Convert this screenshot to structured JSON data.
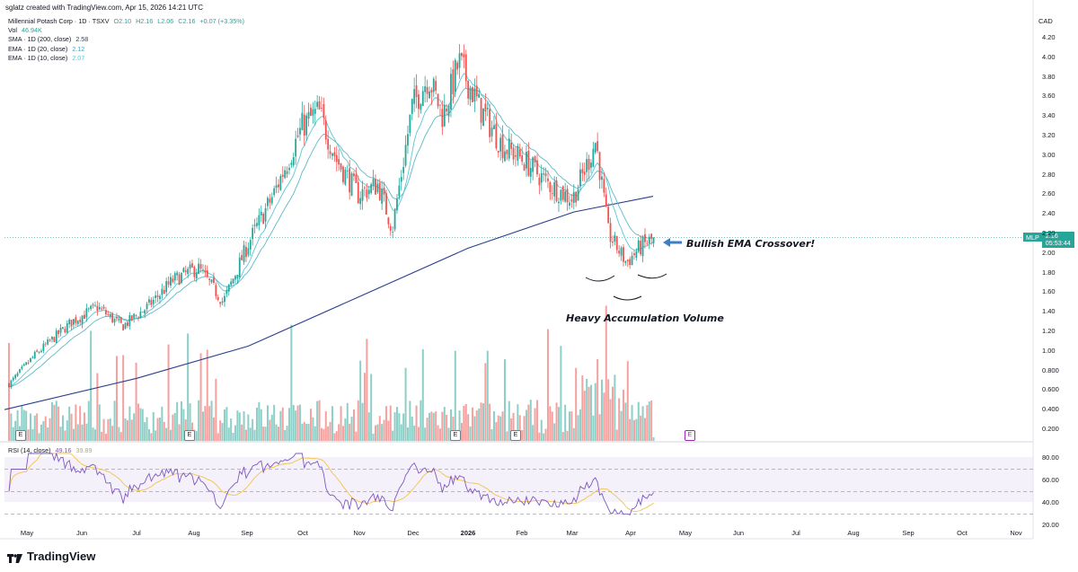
{
  "credit": "sglatz created with TradingView.com, Apr 15, 2026 14:21 UTC",
  "legend": {
    "title": "Millennial Potash Corp · 1D · TSXV",
    "ohlc": {
      "o": "O2.10",
      "h": "H2.16",
      "l": "L2.06",
      "c": "C2.16",
      "chg": "+0.07 (+3.35%)"
    },
    "vol_label": "Vol",
    "vol_value": "46.94K",
    "sma_label": "SMA · 1D (200, close)",
    "sma_value": "2.58",
    "ema20_label": "EMA · 1D (20, close)",
    "ema20_value": "2.12",
    "ema10_label": "EMA · 1D (10, close)",
    "ema10_value": "2.07"
  },
  "rsi_legend": {
    "label": "RSI (14, close)",
    "rsi_value": "49.16",
    "ma_value": "39.89"
  },
  "currency": "CAD",
  "price_tag": {
    "symbol": "MLP",
    "price": "2.16",
    "countdown": "05:53:44"
  },
  "annotations": {
    "bullish": "Bullish EMA Crossover!",
    "volume": "Heavy Accumulation Volume"
  },
  "event_marker": "E",
  "logo": "TradingView",
  "colors": {
    "up": "#26a69a",
    "down": "#ef5350",
    "vol_up": "#8dcfc7",
    "vol_down": "#f5a19f",
    "sma": "#2a3f8f",
    "ema20": "#5fb8c6",
    "ema10": "#56c8d8",
    "rsi": "#7e57c2",
    "rsi_ma": "#f5c24a",
    "annot_arrow": "#3d7fc4"
  },
  "chart_data": {
    "type": "candlestick",
    "price_axis": {
      "ticks": [
        "4.20",
        "4.00",
        "3.80",
        "3.60",
        "3.40",
        "3.20",
        "3.00",
        "2.80",
        "2.60",
        "2.40",
        "2.20",
        "2.00",
        "1.80",
        "1.60",
        "1.40",
        "1.20",
        "1.00",
        "0.800",
        "0.600",
        "0.400",
        "0.200"
      ],
      "ylim": [
        0.1,
        4.3
      ]
    },
    "rsi_axis": {
      "ticks": [
        "80.00",
        "60.00",
        "40.00",
        "20.00"
      ],
      "ylim": [
        20,
        85
      ],
      "bands": [
        30,
        70
      ]
    },
    "x_ticks": [
      "May",
      "Jun",
      "Jul",
      "Aug",
      "Sep",
      "Oct",
      "Nov",
      "Dec",
      "2026",
      "Feb",
      "Mar",
      "Apr",
      "May",
      "Jun",
      "Jul",
      "Aug",
      "Sep",
      "Oct",
      "Nov"
    ],
    "price_path": [
      [
        "2025-04-21",
        0.66
      ],
      [
        "2025-05-05",
        0.95
      ],
      [
        "2025-05-26",
        1.3
      ],
      [
        "2025-06-09",
        1.45
      ],
      [
        "2025-06-23",
        1.25
      ],
      [
        "2025-07-07",
        1.45
      ],
      [
        "2025-07-21",
        1.72
      ],
      [
        "2025-08-04",
        1.85
      ],
      [
        "2025-08-18",
        1.5
      ],
      [
        "2025-09-01",
        2.1
      ],
      [
        "2025-09-15",
        2.6
      ],
      [
        "2025-10-01",
        3.3
      ],
      [
        "2025-10-10",
        3.45
      ],
      [
        "2025-10-20",
        2.95
      ],
      [
        "2025-11-01",
        2.6
      ],
      [
        "2025-11-12",
        2.7
      ],
      [
        "2025-11-20",
        2.25
      ],
      [
        "2025-12-01",
        3.5
      ],
      [
        "2025-12-10",
        3.8
      ],
      [
        "2025-12-18",
        3.4
      ],
      [
        "2025-12-27",
        3.95
      ],
      [
        "2026-01-07",
        3.5
      ],
      [
        "2026-01-20",
        3.1
      ],
      [
        "2026-02-01",
        2.95
      ],
      [
        "2026-02-15",
        2.7
      ],
      [
        "2026-02-28",
        2.55
      ],
      [
        "2026-03-08",
        2.9
      ],
      [
        "2026-03-13",
        3.15
      ],
      [
        "2026-03-20",
        2.2
      ],
      [
        "2026-03-30",
        1.9
      ],
      [
        "2026-04-06",
        2.05
      ],
      [
        "2026-04-15",
        2.16
      ]
    ],
    "sma200_path": [
      [
        "2025-04-21",
        0.4
      ],
      [
        "2025-07-01",
        0.72
      ],
      [
        "2025-09-01",
        1.05
      ],
      [
        "2025-11-01",
        1.55
      ],
      [
        "2026-01-01",
        2.05
      ],
      [
        "2026-03-01",
        2.42
      ],
      [
        "2026-04-15",
        2.58
      ]
    ],
    "last_price": 2.16,
    "rsi_last": 49.16,
    "rsi_ma_last": 39.89,
    "volume_peak_date": "2026-04-02"
  }
}
